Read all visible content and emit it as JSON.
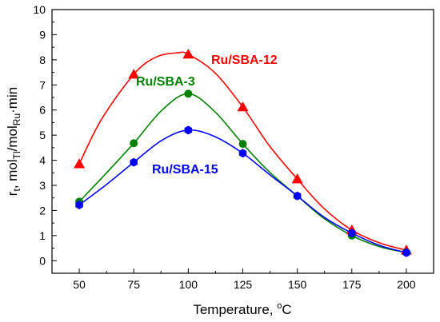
{
  "chart_data": {
    "type": "line",
    "x": [
      50,
      75,
      100,
      125,
      150,
      175,
      200
    ],
    "xlim": [
      37.5,
      212.5
    ],
    "ylim": [
      -0.5,
      10
    ],
    "xticks": [
      50,
      75,
      100,
      125,
      150,
      175,
      200
    ],
    "yticks": [
      0,
      1,
      2,
      3,
      4,
      5,
      6,
      7,
      8,
      9,
      10
    ],
    "xlabel": {
      "main": "Temperature, ",
      "sup": "o",
      "tail": "C"
    },
    "ylabel": {
      "p1": "r",
      "s1": "t",
      "p2": ", mol",
      "s2": "Tl",
      "p3": "/mol",
      "s3": "Ru",
      "p4": "·min"
    },
    "grid": false,
    "series": [
      {
        "name": "Ru/SBA-12",
        "color": "#ff0000",
        "marker": "triangle",
        "values": [
          3.85,
          7.42,
          8.22,
          6.12,
          3.25,
          1.22,
          0.42
        ],
        "curve": [
          [
            50,
            3.85
          ],
          [
            60,
            5.6
          ],
          [
            75,
            7.42
          ],
          [
            85,
            8.1
          ],
          [
            95,
            8.28
          ],
          [
            100,
            8.22
          ],
          [
            112,
            7.5
          ],
          [
            125,
            6.12
          ],
          [
            137,
            4.6
          ],
          [
            150,
            3.25
          ],
          [
            162,
            2.1
          ],
          [
            175,
            1.22
          ],
          [
            188,
            0.7
          ],
          [
            200,
            0.42
          ]
        ]
      },
      {
        "name": "Ru/SBA-3",
        "color": "#008000",
        "marker": "circle",
        "values": [
          2.35,
          4.68,
          6.65,
          4.65,
          2.58,
          1.0,
          0.33
        ],
        "curve": [
          [
            50,
            2.35
          ],
          [
            62,
            3.45
          ],
          [
            75,
            4.68
          ],
          [
            88,
            6.0
          ],
          [
            100,
            6.65
          ],
          [
            112,
            5.95
          ],
          [
            125,
            4.65
          ],
          [
            137,
            3.55
          ],
          [
            150,
            2.58
          ],
          [
            162,
            1.7
          ],
          [
            175,
            1.0
          ],
          [
            188,
            0.55
          ],
          [
            200,
            0.33
          ]
        ]
      },
      {
        "name": "Ru/SBA-15",
        "color": "#0000ff",
        "marker": "hexagon",
        "values": [
          2.22,
          3.92,
          5.2,
          4.28,
          2.58,
          1.1,
          0.32
        ],
        "curve": [
          [
            50,
            2.22
          ],
          [
            62,
            3.0
          ],
          [
            75,
            3.92
          ],
          [
            88,
            4.8
          ],
          [
            100,
            5.2
          ],
          [
            112,
            4.95
          ],
          [
            125,
            4.28
          ],
          [
            137,
            3.45
          ],
          [
            150,
            2.58
          ],
          [
            162,
            1.75
          ],
          [
            175,
            1.1
          ],
          [
            188,
            0.6
          ],
          [
            200,
            0.32
          ]
        ]
      }
    ]
  }
}
